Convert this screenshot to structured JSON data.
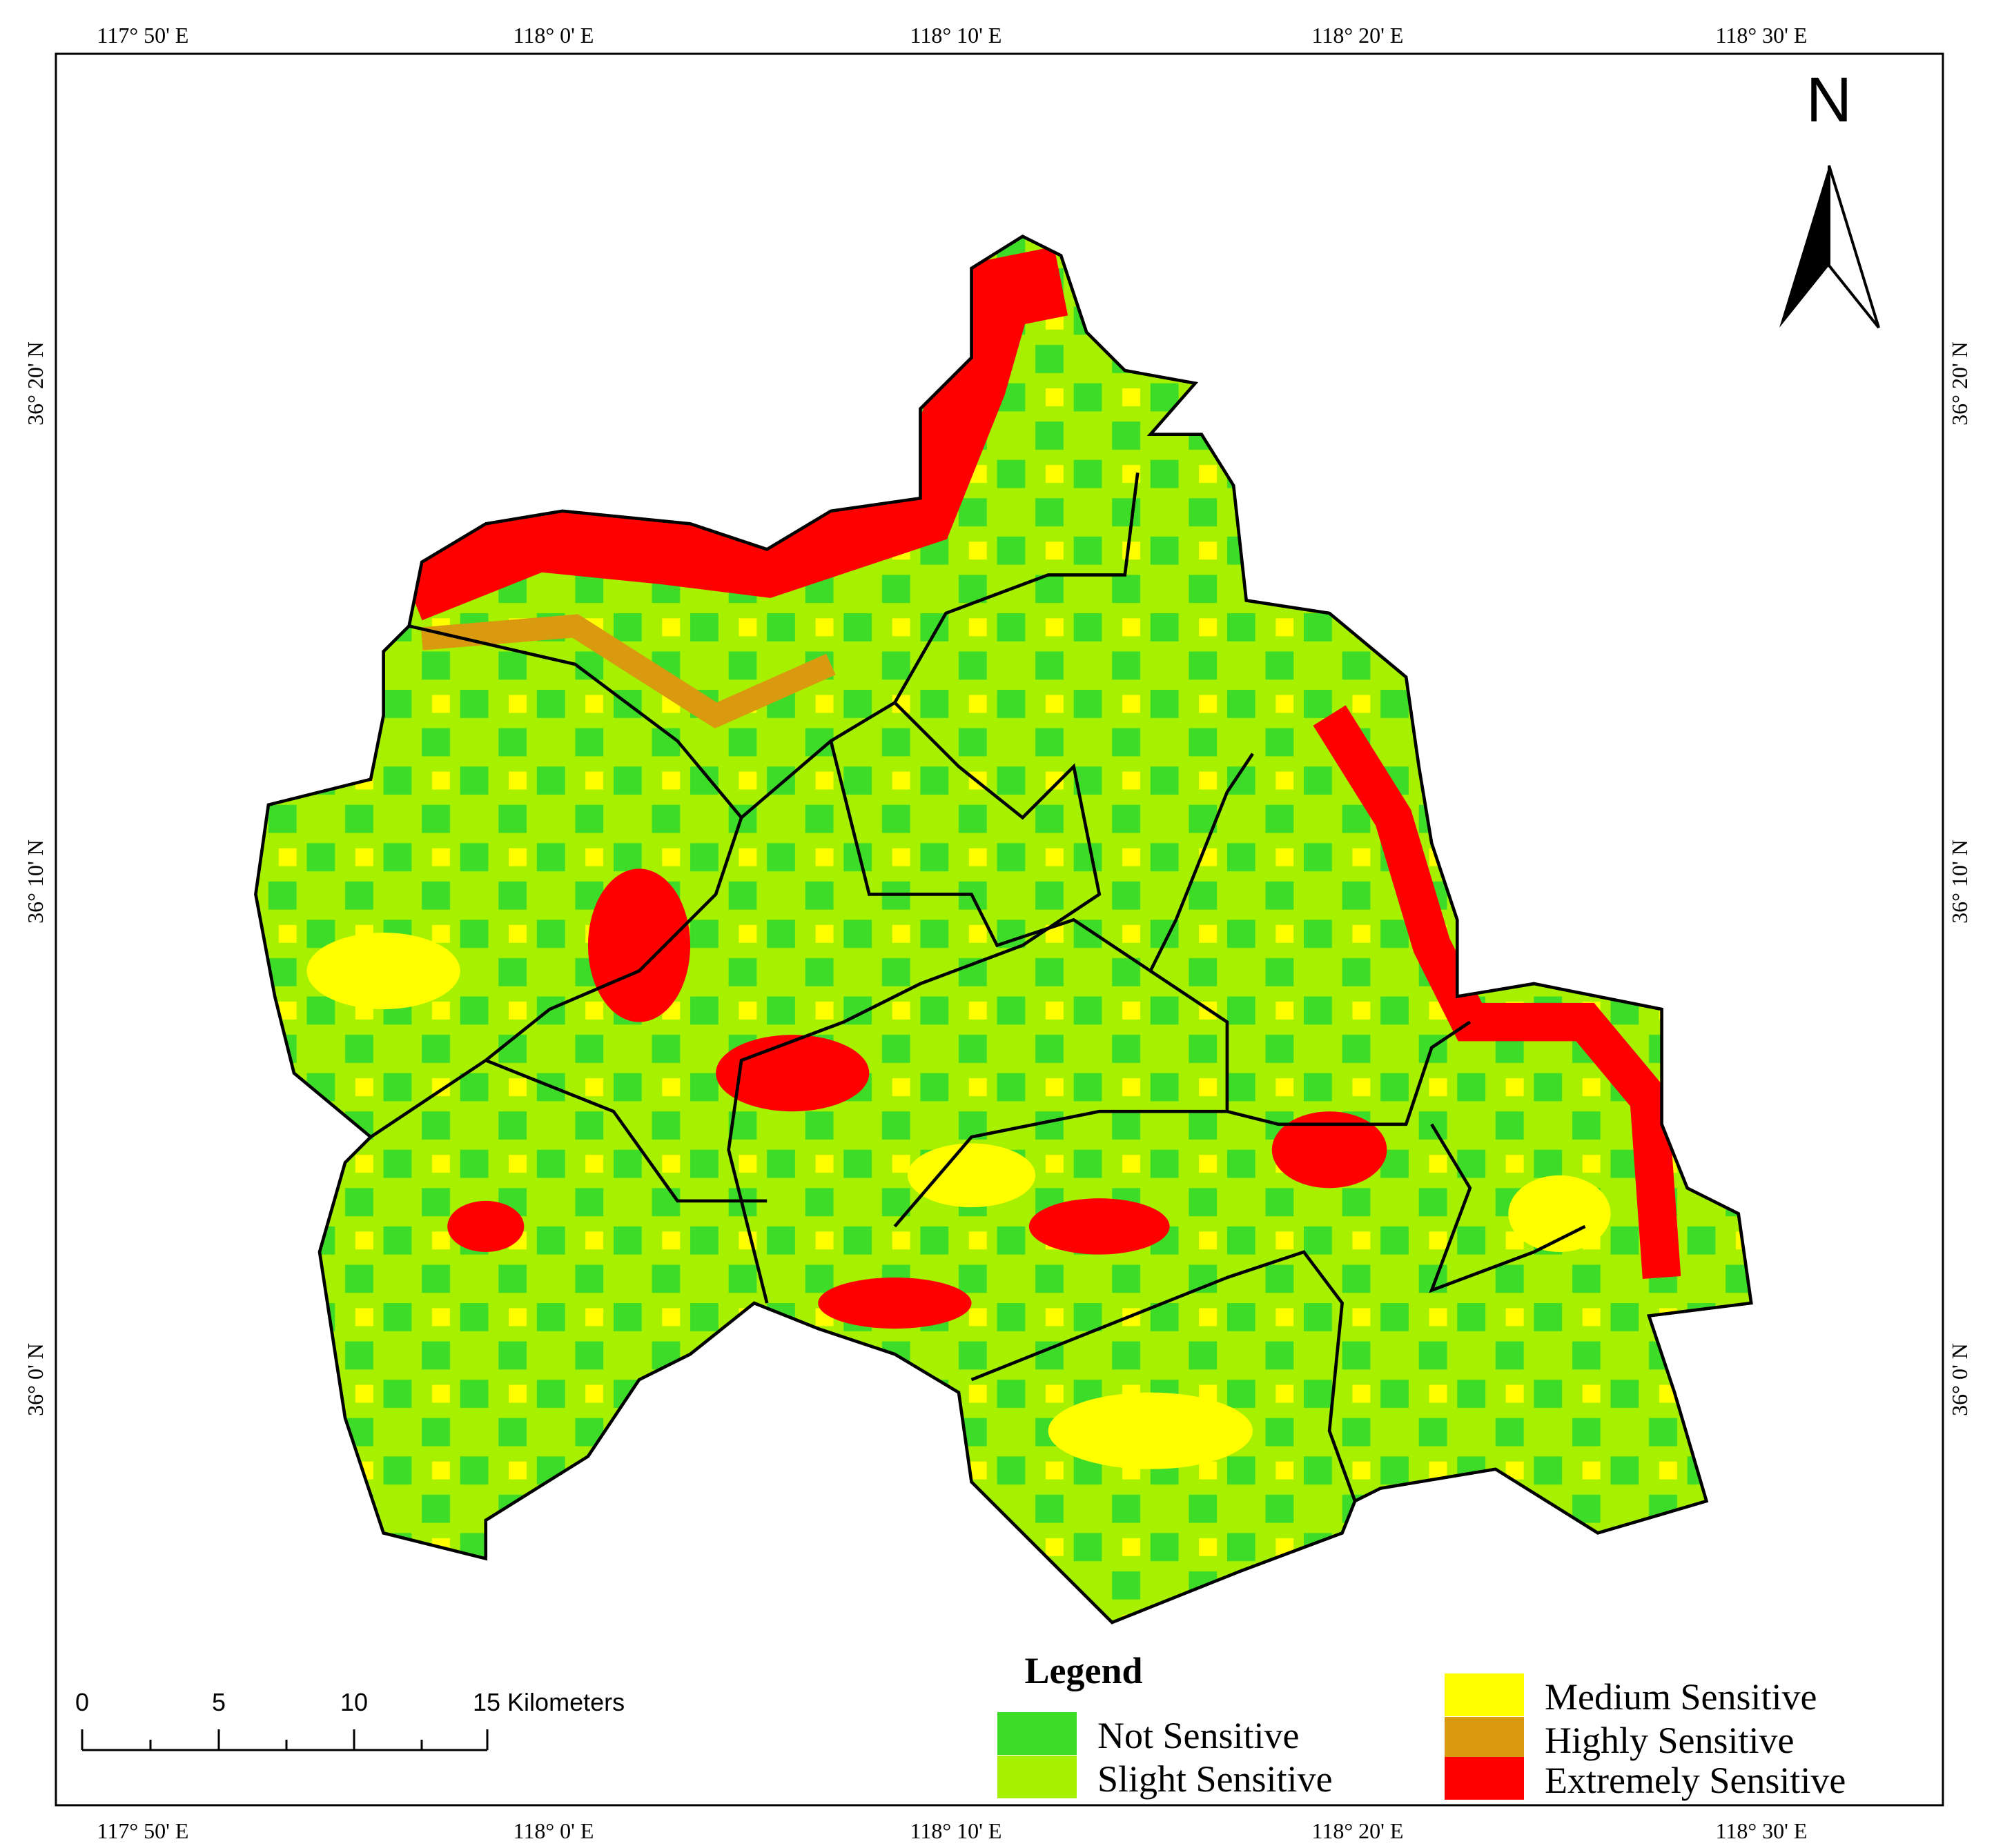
{
  "map": {
    "top_labels": [
      "117° 50' E",
      "118° 0' E",
      "118° 10' E",
      "118° 20' E",
      "118° 30' E"
    ],
    "bottom_labels": [
      "117° 50' E",
      "118° 0' E",
      "118° 10' E",
      "118° 20' E",
      "118° 30' E"
    ],
    "left_labels": [
      "36° 20' N",
      "36° 10' N",
      "36° 0' N"
    ],
    "right_labels": [
      "36° 20' N",
      "36° 10' N",
      "36° 0' N"
    ],
    "north": "N",
    "scale_labels": [
      "0",
      "5",
      "10",
      "15 Kilometers"
    ],
    "legend": {
      "title": "Legend",
      "items": [
        {
          "label": "Not Sensitive",
          "color": "#3ddc28"
        },
        {
          "label": "Slight Sensitive",
          "color": "#a6f000"
        },
        {
          "label": "Medium Sensitive",
          "color": "#ffff00"
        },
        {
          "label": "Highly Sensitive",
          "color": "#d99a0f"
        },
        {
          "label": "Extremely Sensitive",
          "color": "#ff0000"
        }
      ]
    }
  }
}
